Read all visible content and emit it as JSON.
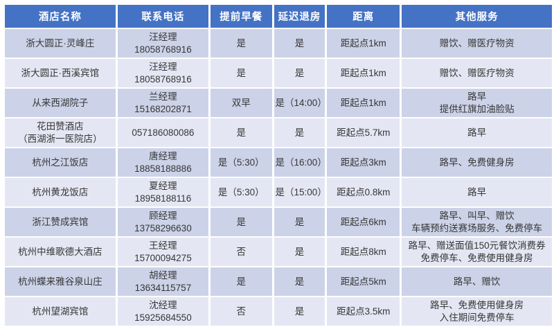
{
  "table": {
    "headers": [
      "酒店名称",
      "联系电话",
      "提前早餐",
      "延迟退房",
      "距离",
      "其他服务"
    ],
    "rows": [
      {
        "name": [
          "浙大圆正·灵峰庄"
        ],
        "phone": [
          "汪经理",
          "18058768916"
        ],
        "breakfast": "是",
        "checkout": "是",
        "distance": "距起点1km",
        "services": [
          "赠饮、赠医疗物资"
        ]
      },
      {
        "name": [
          "浙大圆正·西溪宾馆"
        ],
        "phone": [
          "汪经理",
          "18058768916"
        ],
        "breakfast": "是",
        "checkout": "是",
        "distance": "距起点1km",
        "services": [
          "赠饮、赠医疗物资"
        ]
      },
      {
        "name": [
          "从来西湖院子"
        ],
        "phone": [
          "兰经理",
          "15168202871"
        ],
        "breakfast": "双早",
        "checkout": "是（14:00）",
        "distance": "距起点1km",
        "services": [
          "路早",
          "提供红旗加油脸贴"
        ]
      },
      {
        "name": [
          "花田赞酒店",
          "（西湖浙一医院店）"
        ],
        "phone": [
          "057186080086"
        ],
        "breakfast": "是",
        "checkout": "是",
        "distance": "距起点5.7km",
        "services": [
          "路早"
        ]
      },
      {
        "name": [
          "杭州之江饭店"
        ],
        "phone": [
          "唐经理",
          "18858188886"
        ],
        "breakfast": "是（5:30）",
        "checkout": "是（16:00）",
        "distance": "距起点3km",
        "services": [
          "路早、免费健身房"
        ]
      },
      {
        "name": [
          "杭州黄龙饭店"
        ],
        "phone": [
          "夏经理",
          "18958188116"
        ],
        "breakfast": "是（5:30）",
        "checkout": "是（15:00）",
        "distance": "距起点0.8km",
        "services": [
          "路早"
        ]
      },
      {
        "name": [
          "浙江赞成宾馆"
        ],
        "phone": [
          "顾经理",
          "13758296630"
        ],
        "breakfast": "是",
        "checkout": "是",
        "distance": "距起点6km",
        "services": [
          "路早、叫早、赠饮",
          "车辆预约送赛场服务、免费停车"
        ]
      },
      {
        "name": [
          "杭州中维歌德大酒店"
        ],
        "phone": [
          "王经理",
          "15700094275"
        ],
        "breakfast": "否",
        "checkout": "是",
        "distance": "距起点8km",
        "services": [
          "路早、赠送面值150元餐饮消费券",
          "免费停车、免费使用健身房"
        ]
      },
      {
        "name": [
          "杭州蝶来雅谷泉山庄"
        ],
        "phone": [
          "胡经理",
          "13634115757"
        ],
        "breakfast": "是",
        "checkout": "是",
        "distance": "距起点5km",
        "services": [
          "路早、赠饮"
        ]
      },
      {
        "name": [
          "杭州望湖宾馆"
        ],
        "phone": [
          "沈经理",
          "15925684550"
        ],
        "breakfast": "否",
        "checkout": "是",
        "distance": "距起点3.5km",
        "services": [
          "路早、免费使用健身房",
          "入住期间免费停车"
        ]
      }
    ]
  },
  "colors": {
    "header_bg": "#4472c4",
    "header_text": "#ffffff",
    "row_odd_bg": "#ccd3e8",
    "row_even_bg": "#e4e7f3",
    "body_text": "#363636",
    "gap": "#ffffff"
  }
}
